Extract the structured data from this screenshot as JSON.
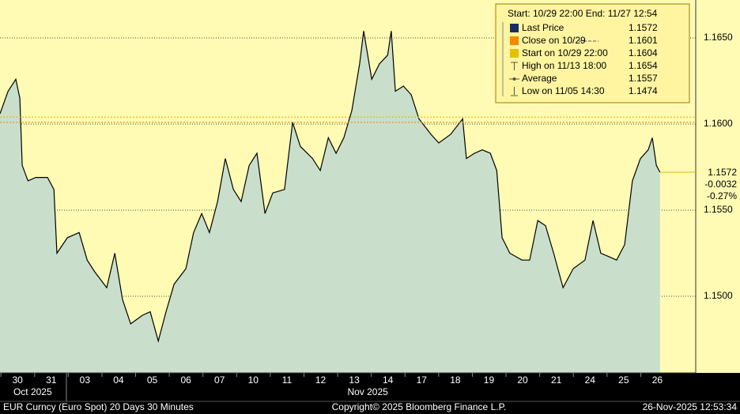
{
  "chart_data": {
    "type": "area",
    "x": [
      -0.52,
      -0.28,
      -0.05,
      0.07,
      0.14,
      0.31,
      0.54,
      0.89,
      1.08,
      1.17,
      1.48,
      1.83,
      2.07,
      2.3,
      2.65,
      2.89,
      3.12,
      3.36,
      3.71,
      3.94,
      4.18,
      4.41,
      4.65,
      5.0,
      5.23,
      5.47,
      5.7,
      5.94,
      6.17,
      6.41,
      6.64,
      6.88,
      7.11,
      7.35,
      7.58,
      7.93,
      8.17,
      8.4,
      8.76,
      8.99,
      9.23,
      9.46,
      9.69,
      9.93,
      10.16,
      10.28,
      10.52,
      10.75,
      10.99,
      11.1,
      11.22,
      11.46,
      11.69,
      11.92,
      12.28,
      12.51,
      12.86,
      13.22,
      13.33,
      13.57,
      13.8,
      14.04,
      14.23,
      14.39,
      14.62,
      14.98,
      15.21,
      15.45,
      15.68,
      15.92,
      16.2,
      16.5,
      16.85,
      17.09,
      17.32,
      17.56,
      17.79,
      18.03,
      18.26,
      18.5,
      18.73,
      18.85,
      18.97,
      19.08
    ],
    "series": [
      {
        "name": "Last Price",
        "color": "#000000",
        "fill": "#c9dfcb",
        "values": [
          1.1606,
          1.1619,
          1.1626,
          1.1615,
          1.1576,
          1.1567,
          1.1569,
          1.1569,
          1.1562,
          1.1525,
          1.1534,
          1.1537,
          1.1521,
          1.1514,
          1.1505,
          1.1525,
          1.1498,
          1.1484,
          1.1489,
          1.1491,
          1.1474,
          1.1491,
          1.1507,
          1.1516,
          1.1537,
          1.1548,
          1.1537,
          1.1555,
          1.158,
          1.1562,
          1.1555,
          1.1576,
          1.1583,
          1.1548,
          1.156,
          1.1562,
          1.1601,
          1.1587,
          1.158,
          1.1573,
          1.1592,
          1.1583,
          1.1592,
          1.1608,
          1.1635,
          1.1654,
          1.1626,
          1.1635,
          1.164,
          1.1654,
          1.1619,
          1.1622,
          1.1617,
          1.1603,
          1.1594,
          1.1589,
          1.1594,
          1.1603,
          1.158,
          1.1583,
          1.1585,
          1.1583,
          1.1573,
          1.1534,
          1.1525,
          1.1521,
          1.1521,
          1.1544,
          1.1541,
          1.1525,
          1.1505,
          1.1516,
          1.1521,
          1.1544,
          1.1525,
          1.1523,
          1.1521,
          1.153,
          1.1567,
          1.158,
          1.1585,
          1.1592,
          1.1576,
          1.1572
        ]
      }
    ],
    "xlim": [
      -0.52,
      20.14
    ],
    "xticks": [
      {
        "value": 0,
        "label": "30"
      },
      {
        "value": 1,
        "label": "31"
      },
      {
        "value": 2,
        "label": "03"
      },
      {
        "value": 3,
        "label": "04"
      },
      {
        "value": 4,
        "label": "05"
      },
      {
        "value": 5,
        "label": "06"
      },
      {
        "value": 6,
        "label": "07"
      },
      {
        "value": 7,
        "label": "10"
      },
      {
        "value": 8,
        "label": "11"
      },
      {
        "value": 9,
        "label": "12"
      },
      {
        "value": 10,
        "label": "13"
      },
      {
        "value": 11,
        "label": "14"
      },
      {
        "value": 12,
        "label": "17"
      },
      {
        "value": 13,
        "label": "18"
      },
      {
        "value": 14,
        "label": "19"
      },
      {
        "value": 15,
        "label": "20"
      },
      {
        "value": 16,
        "label": "21"
      },
      {
        "value": 17,
        "label": "24"
      },
      {
        "value": 18,
        "label": "25"
      },
      {
        "value": 19,
        "label": "26"
      }
    ],
    "month_labels": [
      {
        "value": 0.45,
        "label": "Oct 2025"
      },
      {
        "value": 10.4,
        "label": "Nov 2025"
      }
    ],
    "ylim": [
      1.14555,
      1.1672
    ],
    "yticks": [
      {
        "value": 1.165,
        "label": "1.1650"
      },
      {
        "value": 1.16,
        "label": "1.1600"
      },
      {
        "value": 1.155,
        "label": "1.1550"
      },
      {
        "value": 1.15,
        "label": "1.1500"
      }
    ],
    "grid": true,
    "legend": {
      "header": "Start: 10/29 22:00 End: 11/27 12:54",
      "entries": [
        {
          "label": "Last Price",
          "value": 1.1572,
          "color": "#1b2c5e"
        },
        {
          "label": "Close on 10/29",
          "value": 1.1601,
          "color": "#f08a00",
          "reference_line": true
        },
        {
          "label": "Start on 10/29 22:00",
          "value": 1.1604,
          "color": "#e2c100",
          "reference_line": true
        },
        {
          "label": "High on 11/13 18:00",
          "value": 1.1654
        },
        {
          "label": "Average",
          "value": 1.1557
        },
        {
          "label": "Low on 11/05 14:30",
          "value": 1.1474
        }
      ]
    },
    "last_box": {
      "price": "1.1572",
      "change": "-0.0032",
      "change_pct": "-0.27%"
    },
    "footer": {
      "left": "EUR Curncy (Euro Spot) 20 Days 30 Minutes",
      "center": "Copyright© 2025 Bloomberg Finance L.P.",
      "right": "26-Nov-2025 12:53:34"
    }
  }
}
